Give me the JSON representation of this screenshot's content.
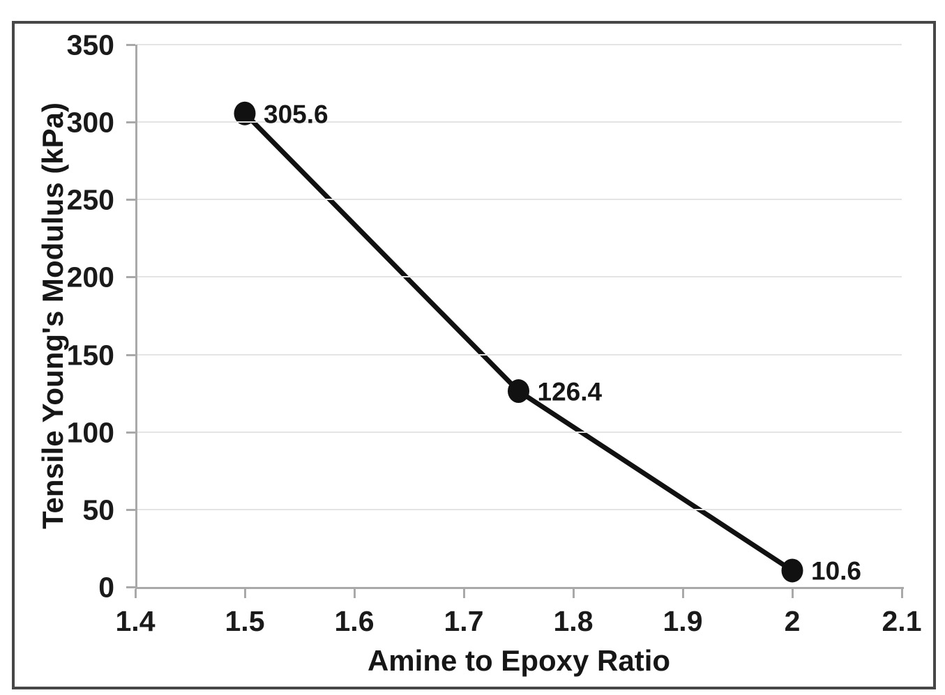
{
  "chart_data": {
    "type": "line",
    "title": "",
    "xlabel": "Amine to Epoxy Ratio",
    "ylabel": "Tensile Young's Modulus (kPa)",
    "x": [
      1.5,
      1.75,
      2
    ],
    "y": [
      305.6,
      126.4,
      10.6
    ],
    "point_labels": [
      "305.6",
      "126.4",
      "10.6"
    ],
    "xlim": [
      1.4,
      2.1
    ],
    "ylim": [
      0,
      350
    ],
    "xticks": [
      {
        "value": 1.4,
        "label": "1.4"
      },
      {
        "value": 1.5,
        "label": "1.5"
      },
      {
        "value": 1.6,
        "label": "1.6"
      },
      {
        "value": 1.7,
        "label": "1.7"
      },
      {
        "value": 1.8,
        "label": "1.8"
      },
      {
        "value": 1.9,
        "label": "1.9"
      },
      {
        "value": 2.0,
        "label": "2"
      },
      {
        "value": 2.1,
        "label": "2.1"
      }
    ],
    "yticks": [
      {
        "value": 0,
        "label": "0"
      },
      {
        "value": 50,
        "label": "50"
      },
      {
        "value": 100,
        "label": "100"
      },
      {
        "value": 150,
        "label": "150"
      },
      {
        "value": 200,
        "label": "200"
      },
      {
        "value": 250,
        "label": "250"
      },
      {
        "value": 300,
        "label": "300"
      },
      {
        "value": 350,
        "label": "350"
      }
    ],
    "grid": "horizontal-only",
    "legend": "none",
    "marker": "filled-circle"
  },
  "colors": {
    "background": "#ffffff",
    "figure_border": "#474747",
    "axis_line": "#a9a9a9",
    "gridline": "#e4e4e4",
    "series_line": "#111111",
    "marker_fill": "#111111",
    "label_text": "#1a1a1a"
  }
}
